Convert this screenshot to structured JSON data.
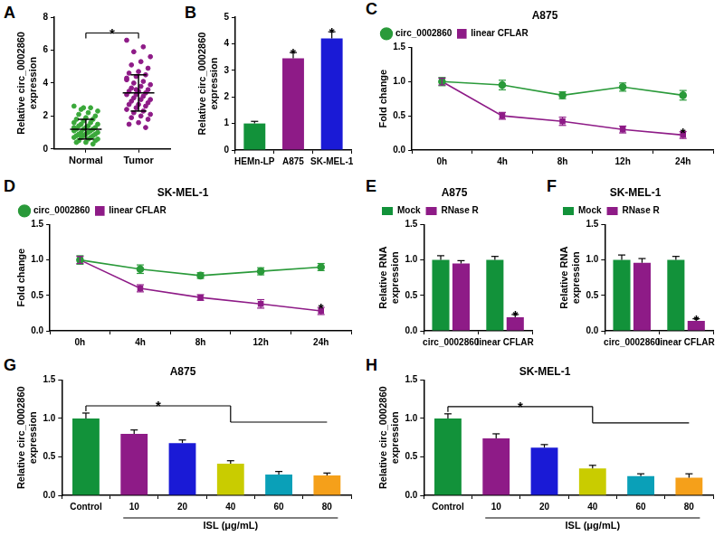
{
  "chart_data": [
    {
      "panel": "A",
      "type": "scatter",
      "y_label": [
        "Relative circ_0002860",
        "expression"
      ],
      "categories": [
        "Normal",
        "Tumor"
      ],
      "values": [
        [
          2.6,
          2.5,
          2.4,
          2.3,
          2.2,
          2.1,
          2.0,
          1.9,
          1.8,
          1.8,
          1.7,
          1.6,
          1.6,
          1.5,
          1.5,
          1.4,
          1.4,
          1.3,
          1.3,
          1.2,
          1.2,
          1.2,
          1.1,
          1.1,
          1.0,
          1.0,
          1.0,
          0.9,
          0.9,
          0.9,
          0.8,
          0.8,
          0.8,
          0.7,
          0.7,
          0.7,
          0.6,
          0.6,
          0.5,
          0.5,
          0.4,
          0.4,
          0.3,
          2.5,
          1.3
        ],
        [
          6.6,
          6.2,
          5.9,
          5.6,
          5.3,
          5.1,
          4.9,
          4.7,
          4.6,
          4.5,
          4.4,
          4.2,
          4.1,
          4.0,
          3.9,
          3.8,
          3.7,
          3.6,
          3.5,
          3.5,
          3.4,
          3.3,
          3.3,
          3.2,
          3.1,
          3.0,
          3.0,
          2.9,
          2.8,
          2.7,
          2.7,
          2.6,
          2.5,
          2.4,
          2.3,
          2.2,
          2.1,
          2.0,
          1.9,
          1.8,
          1.6,
          1.5,
          1.3,
          3.6,
          4.3
        ]
      ],
      "colors": [
        "#3aa83a",
        "#8e1b87"
      ],
      "marker": "circle",
      "mean": [
        1.2,
        3.4
      ],
      "sd": [
        0.6,
        1.1
      ],
      "ylim": [
        0,
        8
      ],
      "yticks": [
        0,
        2,
        4,
        6,
        8
      ],
      "grid": false,
      "significance": [
        {
          "from": "Normal",
          "to": "Tumor",
          "text": "*"
        }
      ]
    },
    {
      "panel": "B",
      "type": "bar",
      "y_label": [
        "Relative circ_0002860",
        "expression"
      ],
      "categories": [
        "HEMn-LP",
        "A875",
        "SK-MEL-1"
      ],
      "values": [
        1.0,
        3.45,
        4.2
      ],
      "errors": [
        0.08,
        0.22,
        0.25
      ],
      "colors": [
        "#12923a",
        "#8e1b87",
        "#1a1ad6"
      ],
      "ylim": [
        0,
        5
      ],
      "yticks": [
        0,
        1,
        2,
        3,
        4,
        5
      ],
      "grid": false,
      "significance": [
        {
          "at": "A875",
          "text": "*"
        },
        {
          "at": "SK-MEL-1",
          "text": "*"
        }
      ]
    },
    {
      "panel": "C",
      "type": "line",
      "title": "A875",
      "y_label": "Fold change",
      "categories": [
        "0h",
        "4h",
        "8h",
        "12h",
        "24h"
      ],
      "series": [
        {
          "name": "circ_0002860",
          "color": "#2a9a3a",
          "marker": "circle",
          "values": [
            1.0,
            0.95,
            0.8,
            0.92,
            0.8
          ],
          "errors": [
            0.06,
            0.07,
            0.05,
            0.06,
            0.07
          ]
        },
        {
          "name": "linear CFLAR",
          "color": "#8e1b87",
          "marker": "square",
          "values": [
            1.0,
            0.5,
            0.42,
            0.3,
            0.22
          ],
          "errors": [
            0.05,
            0.05,
            0.06,
            0.05,
            0.05
          ]
        }
      ],
      "ylim": [
        0,
        1.5
      ],
      "yticks": [
        {
          "value": 0,
          "label": "0.0"
        },
        0.5,
        {
          "value": 1,
          "label": "1.0"
        },
        1.5
      ],
      "grid": false,
      "legend": "top-left",
      "significance": [
        {
          "at": "24h",
          "series": "linear CFLAR",
          "text": "*"
        }
      ]
    },
    {
      "panel": "D",
      "type": "line",
      "title": "SK-MEL-1",
      "y_label": "Fold change",
      "categories": [
        "0h",
        "4h",
        "8h",
        "12h",
        "24h"
      ],
      "series": [
        {
          "name": "circ_0002860",
          "color": "#2a9a3a",
          "marker": "circle",
          "values": [
            1.0,
            0.87,
            0.78,
            0.84,
            0.9
          ],
          "errors": [
            0.06,
            0.06,
            0.04,
            0.05,
            0.05
          ]
        },
        {
          "name": "linear CFLAR",
          "color": "#8e1b87",
          "marker": "square",
          "values": [
            1.0,
            0.6,
            0.47,
            0.38,
            0.28
          ],
          "errors": [
            0.05,
            0.05,
            0.04,
            0.06,
            0.05
          ]
        }
      ],
      "ylim": [
        0,
        1.5
      ],
      "yticks": [
        {
          "value": 0,
          "label": "0.0"
        },
        0.5,
        {
          "value": 1,
          "label": "1.0"
        },
        1.5
      ],
      "grid": false,
      "legend": "top-left",
      "significance": [
        {
          "at": "24h",
          "series": "linear CFLAR",
          "text": "*"
        }
      ]
    },
    {
      "panel": "E",
      "type": "bar",
      "title": "A875",
      "y_label": [
        "Relative RNA",
        "expression"
      ],
      "categories": [
        "circ_0002860",
        "linear CFLAR"
      ],
      "series": [
        {
          "name": "Mock",
          "color": "#12923a",
          "values": [
            1.0,
            1.0
          ],
          "errors": [
            0.06,
            0.05
          ]
        },
        {
          "name": "RNase R",
          "color": "#8e1b87",
          "values": [
            0.95,
            0.19
          ],
          "errors": [
            0.04,
            0.04
          ]
        }
      ],
      "ylim": [
        0,
        1.5
      ],
      "yticks": [
        {
          "value": 0,
          "label": "0.0"
        },
        0.5,
        {
          "value": 1,
          "label": "1.0"
        },
        1.5
      ],
      "grid": false,
      "legend": "top-left",
      "significance": [
        {
          "at": "linear CFLAR",
          "series": "RNase R",
          "text": "*"
        }
      ]
    },
    {
      "panel": "F",
      "type": "bar",
      "title": "SK-MEL-1",
      "y_label": [
        "Relative RNA",
        "expression"
      ],
      "categories": [
        "circ_0002860",
        "linear CFLAR"
      ],
      "series": [
        {
          "name": "Mock",
          "color": "#12923a",
          "values": [
            1.0,
            1.0
          ],
          "errors": [
            0.07,
            0.05
          ]
        },
        {
          "name": "RNase R",
          "color": "#8e1b87",
          "values": [
            0.96,
            0.14
          ],
          "errors": [
            0.06,
            0.03
          ]
        }
      ],
      "ylim": [
        0,
        1.5
      ],
      "yticks": [
        {
          "value": 0,
          "label": "0.0"
        },
        0.5,
        {
          "value": 1,
          "label": "1.0"
        },
        1.5
      ],
      "grid": false,
      "legend": "top-left",
      "significance": [
        {
          "at": "linear CFLAR",
          "series": "RNase R",
          "text": "*"
        }
      ]
    },
    {
      "panel": "G",
      "type": "bar",
      "title": "A875",
      "y_label": [
        "Relative circ_0002860",
        "expression"
      ],
      "categories": [
        "Control",
        "10",
        "20",
        "40",
        "60",
        "80"
      ],
      "values": [
        1.0,
        0.8,
        0.68,
        0.41,
        0.27,
        0.26
      ],
      "errors": [
        0.07,
        0.05,
        0.04,
        0.04,
        0.04,
        0.03
      ],
      "colors": [
        "#12923a",
        "#8e1b87",
        "#1a1ad6",
        "#c9cc00",
        "#0aa0b8",
        "#f5a01a"
      ],
      "x_group_label": {
        "text": "ISL (μg/mL)",
        "from": "10",
        "to": "80"
      },
      "ylim": [
        0,
        1.5
      ],
      "yticks": [
        {
          "value": 0,
          "label": "0.0"
        },
        0.5,
        {
          "value": 1,
          "label": "1.0"
        },
        1.5
      ],
      "grid": false,
      "significance": [
        {
          "from": "Control",
          "to": "40",
          "through": "80",
          "text": "*"
        }
      ]
    },
    {
      "panel": "H",
      "type": "bar",
      "title": "SK-MEL-1",
      "y_label": [
        "Relative circ_0002860",
        "expression"
      ],
      "categories": [
        "Control",
        "10",
        "20",
        "40",
        "60",
        "80"
      ],
      "values": [
        1.0,
        0.74,
        0.62,
        0.35,
        0.25,
        0.23
      ],
      "errors": [
        0.06,
        0.06,
        0.04,
        0.04,
        0.03,
        0.05
      ],
      "colors": [
        "#12923a",
        "#8e1b87",
        "#1a1ad6",
        "#c9cc00",
        "#0aa0b8",
        "#f5a01a"
      ],
      "x_group_label": {
        "text": "ISL (μg/mL)",
        "from": "10",
        "to": "80"
      },
      "ylim": [
        0,
        1.5
      ],
      "yticks": [
        {
          "value": 0,
          "label": "0.0"
        },
        0.5,
        {
          "value": 1,
          "label": "1.0"
        },
        1.5
      ],
      "grid": false,
      "significance": [
        {
          "from": "Control",
          "to": "40",
          "through": "80",
          "text": "*"
        }
      ]
    }
  ]
}
